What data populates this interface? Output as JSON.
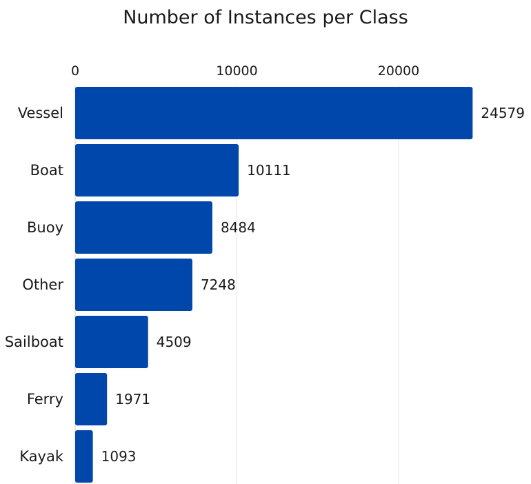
{
  "chart_data": {
    "type": "bar",
    "orientation": "horizontal",
    "title": "Number of Instances per Class",
    "categories": [
      "Vessel",
      "Boat",
      "Buoy",
      "Other",
      "Sailboat",
      "Ferry",
      "Kayak"
    ],
    "values": [
      24579,
      10111,
      8484,
      7248,
      4509,
      1971,
      1093
    ],
    "xlim": [
      0,
      27000
    ],
    "ticks": [
      0,
      10000,
      20000
    ],
    "tick_labels": [
      "0",
      "10000",
      "20000"
    ],
    "x_axis_position": "top",
    "grid": true,
    "legend": "none",
    "colors": {
      "bar": "#0047AB",
      "grid": "#e3e3e3",
      "axis": "#cfcfcf"
    }
  }
}
